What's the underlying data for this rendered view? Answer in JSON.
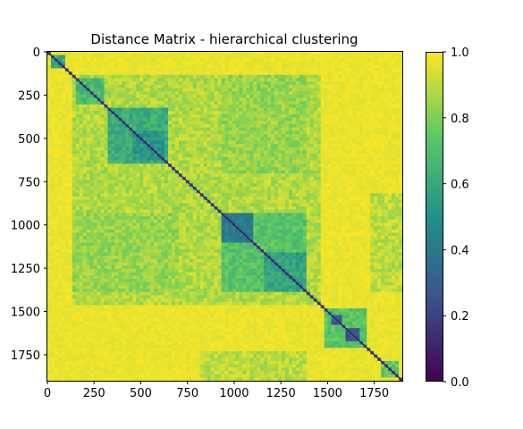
{
  "chart_data": {
    "type": "heatmap",
    "title": "Distance Matrix - hierarchical clustering",
    "xlabel": "",
    "ylabel": "",
    "n": 1900,
    "xlim": [
      0,
      1900
    ],
    "ylim": [
      1900,
      0
    ],
    "x_ticks": [
      0,
      250,
      500,
      750,
      1000,
      1250,
      1500,
      1750
    ],
    "y_ticks": [
      0,
      250,
      500,
      750,
      1000,
      1250,
      1500,
      1750
    ],
    "colorbar": {
      "colormap": "viridis",
      "range": [
        0.0,
        1.0
      ],
      "ticks": [
        "0.0",
        "0.2",
        "0.4",
        "0.6",
        "0.8",
        "1.0"
      ],
      "tick_values": [
        0.0,
        0.2,
        0.4,
        0.6,
        0.8,
        1.0
      ]
    },
    "background_value": 0.97,
    "diagonal_value": 0.05,
    "clusters": [
      {
        "start": 20,
        "end": 100,
        "value": 0.6
      },
      {
        "start": 150,
        "end": 310,
        "value": 0.68
      },
      {
        "start": 320,
        "end": 640,
        "value": 0.62
      },
      {
        "start": 460,
        "end": 620,
        "value": 0.52
      },
      {
        "start": 930,
        "end": 1380,
        "value": 0.72
      },
      {
        "start": 940,
        "end": 1100,
        "value": 0.42
      },
      {
        "start": 1160,
        "end": 1380,
        "value": 0.58
      },
      {
        "start": 1490,
        "end": 1710,
        "value": 0.72
      },
      {
        "start": 1520,
        "end": 1580,
        "value": 0.3
      },
      {
        "start": 1590,
        "end": 1680,
        "value": 0.28
      },
      {
        "start": 1780,
        "end": 1890,
        "value": 0.75
      }
    ],
    "cross_regions": [
      {
        "rows": [
          130,
          1460
        ],
        "cols": [
          130,
          1460
        ],
        "value": 0.88
      },
      {
        "rows": [
          130,
          700
        ],
        "cols": [
          930,
          1380
        ],
        "value": 0.84
      },
      {
        "rows": [
          930,
          1380
        ],
        "cols": [
          130,
          700
        ],
        "value": 0.84
      },
      {
        "rows": [
          1730,
          1900
        ],
        "cols": [
          820,
          1380
        ],
        "value": 0.9
      },
      {
        "rows": [
          820,
          1380
        ],
        "cols": [
          1730,
          1900
        ],
        "value": 0.9
      }
    ]
  },
  "colors": {
    "viridis_stops": [
      "#440154",
      "#3b528b",
      "#21918c",
      "#5ec962",
      "#fde725"
    ]
  }
}
